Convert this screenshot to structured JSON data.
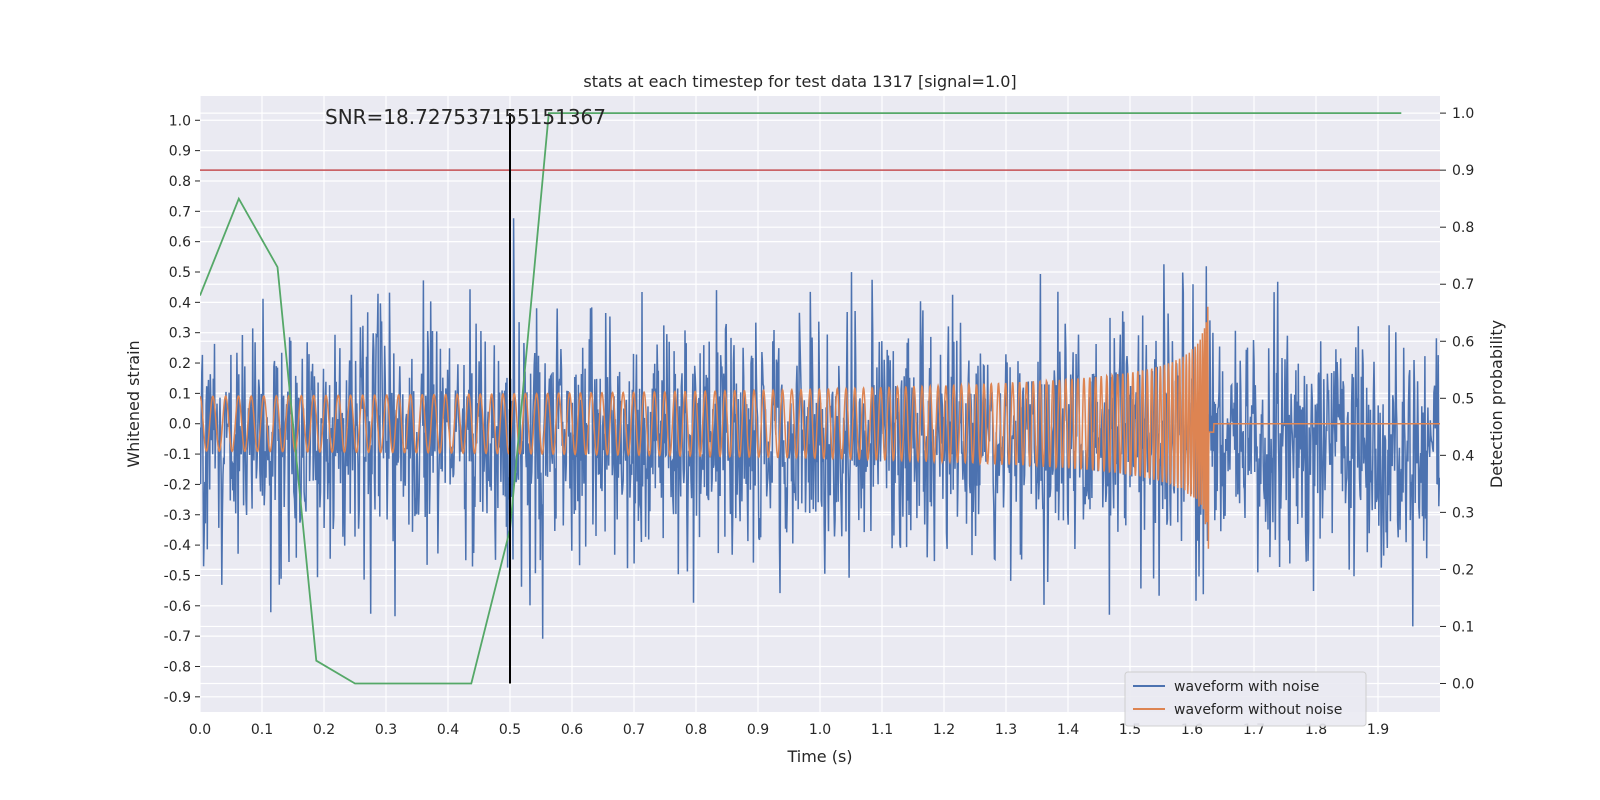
{
  "chart_data": {
    "type": "line",
    "title": "stats at each timestep for test data 1317 [signal=1.0]",
    "xlabel": "Time (s)",
    "ylabel": "Whitened strain",
    "y2label": "Detection probability",
    "xlim": [
      0.0,
      2.0
    ],
    "ylim": [
      -0.95,
      1.08
    ],
    "y2lim": [
      -0.05,
      1.03
    ],
    "x_ticks": [
      "0.0",
      "0.1",
      "0.2",
      "0.3",
      "0.4",
      "0.5",
      "0.6",
      "0.7",
      "0.8",
      "0.9",
      "1.0",
      "1.1",
      "1.2",
      "1.3",
      "1.4",
      "1.5",
      "1.6",
      "1.7",
      "1.8",
      "1.9"
    ],
    "y_ticks": [
      "1.0",
      "0.9",
      "0.8",
      "0.7",
      "0.6",
      "0.5",
      "0.4",
      "0.3",
      "0.2",
      "0.1",
      "0.0",
      "-0.1",
      "-0.2",
      "-0.3",
      "-0.4",
      "-0.5",
      "-0.6",
      "-0.7",
      "-0.8",
      "-0.9"
    ],
    "y2_ticks": [
      "1.0",
      "0.9",
      "0.8",
      "0.7",
      "0.6",
      "0.5",
      "0.4",
      "0.3",
      "0.2",
      "0.1",
      "0.0"
    ],
    "grid": true,
    "legend_position": "bottom-right",
    "annotation": "SNR=18.727537155151367",
    "series": [
      {
        "name": "waveform with noise",
        "color": "#4c72b0",
        "axis": "left",
        "kind": "noisy-strain",
        "sample_rate": 1024,
        "amplitude_range": [
          -0.86,
          1.0
        ]
      },
      {
        "name": "waveform without noise",
        "color": "#dd8452",
        "axis": "left",
        "kind": "chirp",
        "merger_time": 1.63,
        "start_amplitude": 0.09,
        "peak_amplitude": 0.55,
        "start_frequency": 30
      },
      {
        "name": "",
        "color": "#55a868",
        "axis": "right",
        "x": [
          0.0,
          0.0625,
          0.125,
          0.1875,
          0.25,
          0.3125,
          0.375,
          0.4375,
          0.5,
          0.5625,
          0.625,
          0.6875,
          0.75,
          0.8125,
          0.875,
          0.9375,
          1.0,
          1.0625,
          1.125,
          1.1875,
          1.25,
          1.3125,
          1.375,
          1.4375,
          1.5,
          1.5625,
          1.625,
          1.6875,
          1.75,
          1.8125,
          1.875,
          1.9375
        ],
        "y": [
          0.68,
          0.85,
          0.73,
          0.04,
          0.0,
          0.0,
          0.0,
          0.0,
          0.27,
          1.0,
          1.0,
          1.0,
          1.0,
          1.0,
          1.0,
          1.0,
          1.0,
          1.0,
          1.0,
          1.0,
          1.0,
          1.0,
          1.0,
          1.0,
          1.0,
          1.0,
          1.0,
          1.0,
          1.0,
          1.0,
          1.0,
          1.0
        ]
      }
    ],
    "threshold": {
      "axis": "right",
      "value": 0.9,
      "color": "#c44e52"
    },
    "vline": {
      "x": 0.5,
      "y2_range": [
        0.0,
        1.0
      ],
      "color": "#000000"
    }
  }
}
